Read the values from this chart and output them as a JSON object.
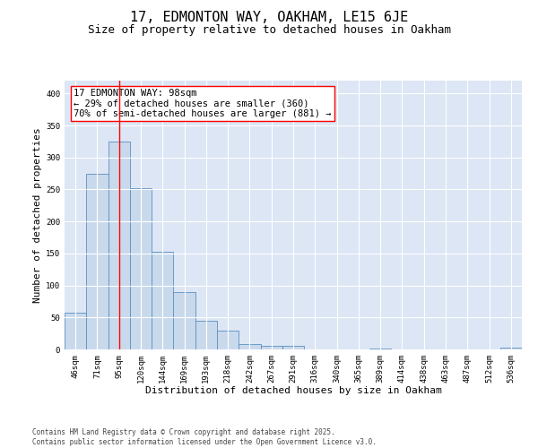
{
  "title1": "17, EDMONTON WAY, OAKHAM, LE15 6JE",
  "title2": "Size of property relative to detached houses in Oakham",
  "xlabel": "Distribution of detached houses by size in Oakham",
  "ylabel": "Number of detached properties",
  "bar_color": "#c9d9ec",
  "bar_edge_color": "#5a8fc0",
  "background_color": "#dce6f5",
  "grid_color": "#ffffff",
  "categories": [
    "46sqm",
    "71sqm",
    "95sqm",
    "120sqm",
    "144sqm",
    "169sqm",
    "193sqm",
    "218sqm",
    "242sqm",
    "267sqm",
    "291sqm",
    "316sqm",
    "340sqm",
    "365sqm",
    "389sqm",
    "414sqm",
    "438sqm",
    "463sqm",
    "487sqm",
    "512sqm",
    "536sqm"
  ],
  "values": [
    58,
    275,
    325,
    252,
    153,
    90,
    45,
    29,
    9,
    6,
    5,
    0,
    0,
    0,
    2,
    0,
    0,
    0,
    0,
    0,
    3
  ],
  "property_line_x": 2,
  "property_line_label": "17 EDMONTON WAY: 98sqm",
  "annotation_line1": "← 29% of detached houses are smaller (360)",
  "annotation_line2": "70% of semi-detached houses are larger (881) →",
  "ylim": [
    0,
    420
  ],
  "yticks": [
    0,
    50,
    100,
    150,
    200,
    250,
    300,
    350,
    400
  ],
  "footer1": "Contains HM Land Registry data © Crown copyright and database right 2025.",
  "footer2": "Contains public sector information licensed under the Open Government Licence v3.0.",
  "title_fontsize": 11,
  "subtitle_fontsize": 9,
  "axis_label_fontsize": 8,
  "tick_fontsize": 6.5,
  "annotation_fontsize": 7.5,
  "footer_fontsize": 5.5
}
